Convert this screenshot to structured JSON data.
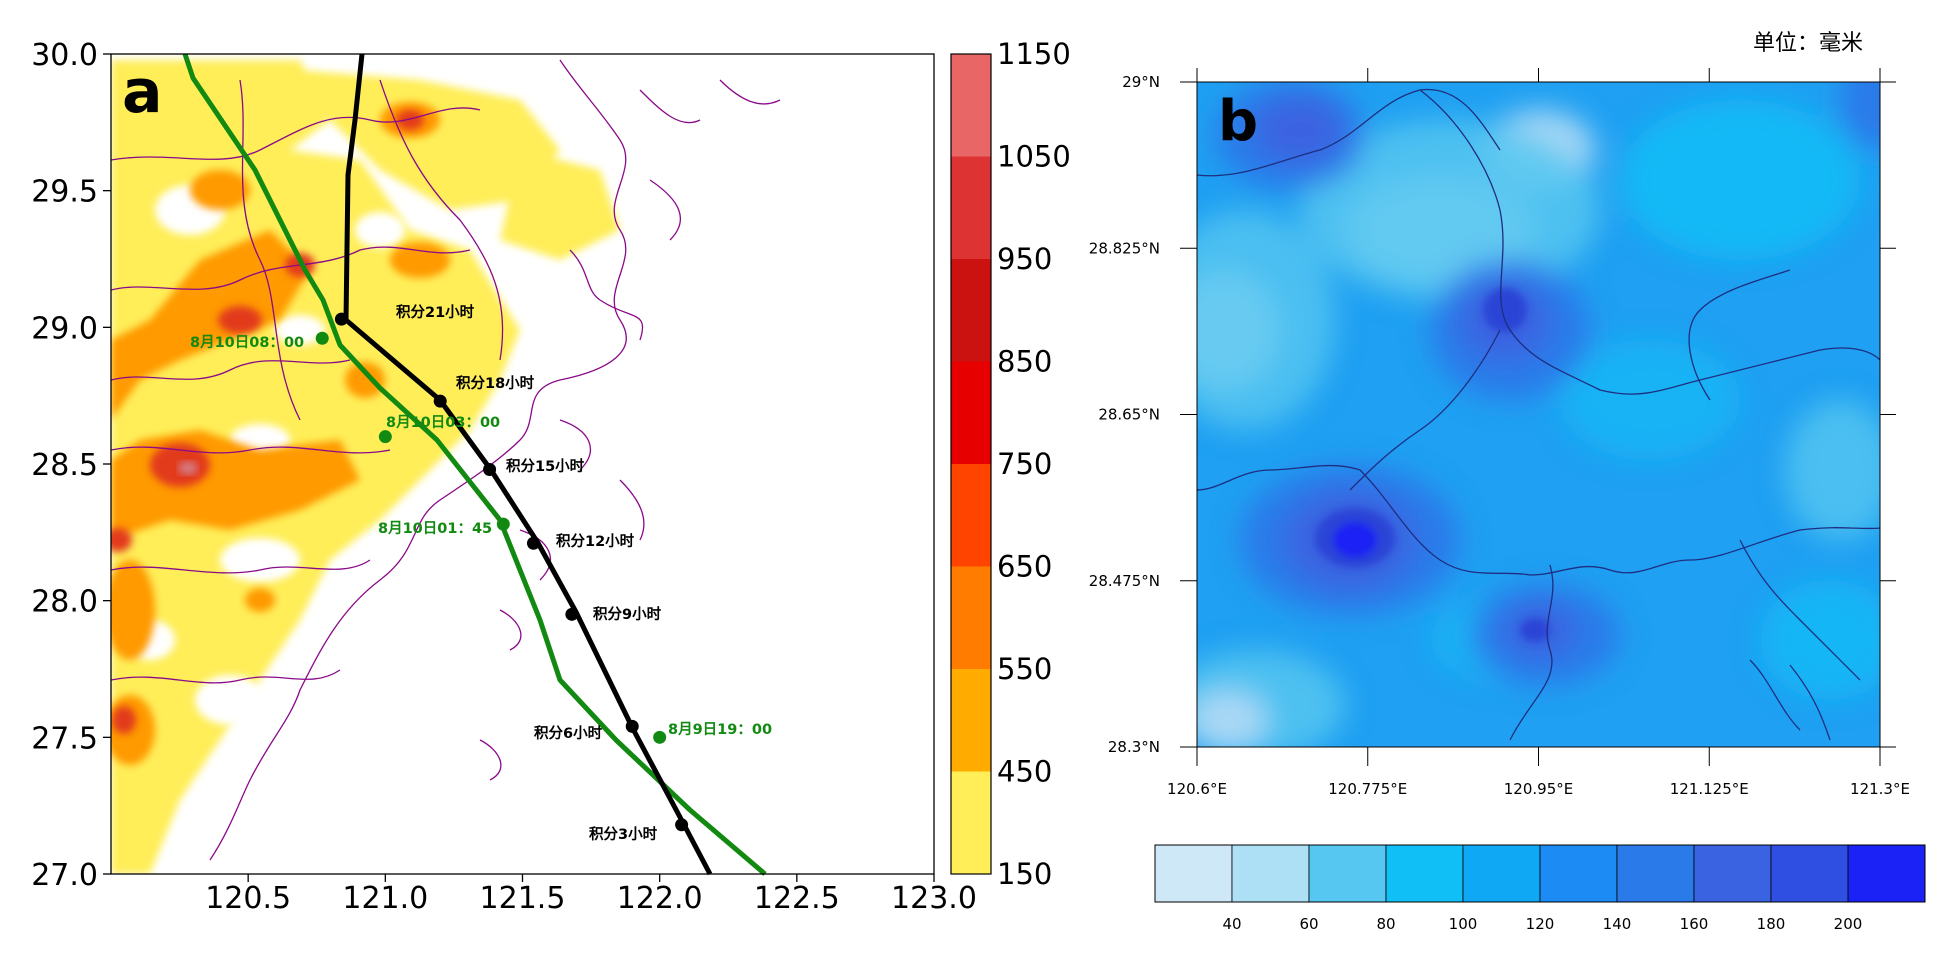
{
  "panel_a": {
    "label": "a",
    "x_ticks": [
      "120.5",
      "121.0",
      "121.5",
      "122.0",
      "122.5",
      "123.0"
    ],
    "y_ticks": [
      "30.0",
      "29.5",
      "29.0",
      "28.5",
      "28.0",
      "27.5",
      "27.0"
    ],
    "colorbar": {
      "labels": [
        "1150",
        "1050",
        "950",
        "850",
        "750",
        "650",
        "550",
        "450",
        "150"
      ],
      "colors": [
        "#ffee58",
        "#ffab00",
        "#ff7c00",
        "#ff4400",
        "#e60000",
        "#cc1111",
        "#dd3333",
        "#e86666"
      ]
    },
    "integration_track": {
      "color": "#000000",
      "labels": [
        "积分21小时",
        "积分18小时",
        "积分15小时",
        "积分12小时",
        "积分9小时",
        "积分6小时",
        "积分3小时"
      ],
      "points": [
        {
          "lon": 120.84,
          "lat": 29.03
        },
        {
          "lon": 121.2,
          "lat": 28.73
        },
        {
          "lon": 121.38,
          "lat": 28.48
        },
        {
          "lon": 121.54,
          "lat": 28.21
        },
        {
          "lon": 121.68,
          "lat": 27.95
        },
        {
          "lon": 121.9,
          "lat": 27.54
        },
        {
          "lon": 122.08,
          "lat": 27.18
        }
      ]
    },
    "observed_track": {
      "color": "#128a12",
      "labels": [
        "8月10日08：00",
        "8月10日03：00",
        "8月10日01：45",
        "8月9日19：00"
      ],
      "points": [
        {
          "lon": 120.77,
          "lat": 28.96
        },
        {
          "lon": 121.0,
          "lat": 28.6
        },
        {
          "lon": 121.43,
          "lat": 28.28
        },
        {
          "lon": 122.0,
          "lat": 27.5
        }
      ]
    }
  },
  "panel_b": {
    "label": "b",
    "unit": "单位：毫米",
    "x_ticks": [
      "120.6°E",
      "120.775°E",
      "120.95°E",
      "121.125°E",
      "121.3°E"
    ],
    "y_ticks": [
      "29°N",
      "28.825°N",
      "28.65°N",
      "28.475°N",
      "28.3°N"
    ],
    "colorbar": {
      "labels": [
        "40",
        "60",
        "80",
        "100",
        "120",
        "140",
        "160",
        "180",
        "200"
      ],
      "colors": [
        "#cfe8f7",
        "#ade0f5",
        "#55c7f0",
        "#10bff6",
        "#0fa8f4",
        "#1c8cf4",
        "#2b7ae9",
        "#3a63e1",
        "#2f4fe3",
        "#1b22f5"
      ]
    }
  }
}
